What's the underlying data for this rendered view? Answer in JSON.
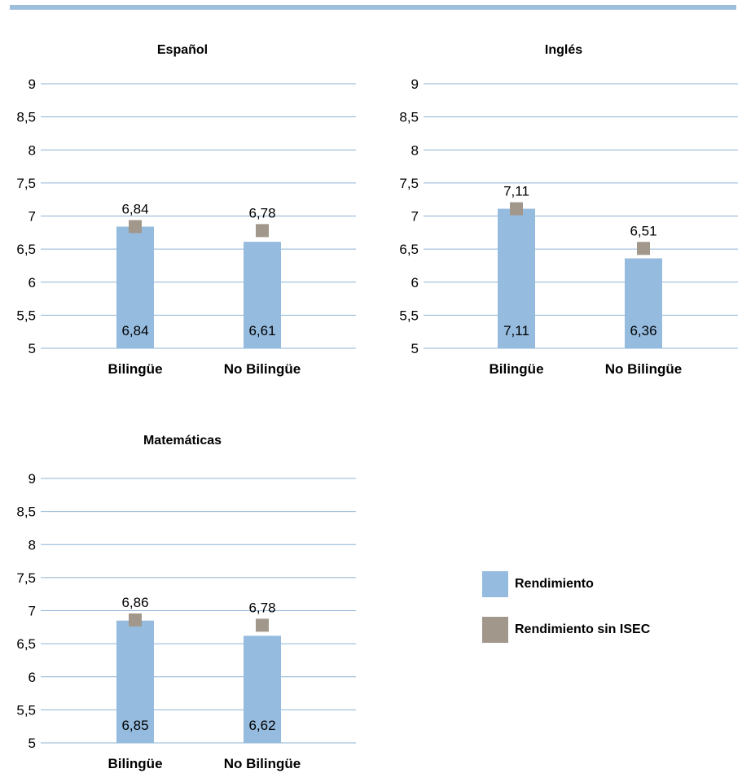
{
  "colors": {
    "top_rule": "#9dbfdc",
    "bar": "#95bbdf",
    "marker": "#a2978b",
    "grid": "#8fb4d6",
    "text": "#000000"
  },
  "chart_data": [
    {
      "type": "bar",
      "title": "Español",
      "categories": [
        "Bilingüe",
        "No Bilingüe"
      ],
      "ylim": [
        5,
        9
      ],
      "yticks": [
        "5",
        "5,5",
        "6",
        "6,5",
        "7",
        "7,5",
        "8",
        "8,5",
        "9"
      ],
      "grid": true,
      "series": [
        {
          "name": "Rendimiento",
          "kind": "bar",
          "values": [
            6.84,
            6.61
          ],
          "labels": [
            "6,84",
            "6,61"
          ]
        },
        {
          "name": "Rendimiento sin ISEC",
          "kind": "marker",
          "values": [
            6.84,
            6.78
          ],
          "labels": [
            "6,84",
            "6,78"
          ]
        }
      ]
    },
    {
      "type": "bar",
      "title": "Inglés",
      "categories": [
        "Bilingüe",
        "No Bilingüe"
      ],
      "ylim": [
        5,
        9
      ],
      "yticks": [
        "5",
        "5,5",
        "6",
        "6,5",
        "7",
        "7,5",
        "8",
        "8,5",
        "9"
      ],
      "grid": true,
      "series": [
        {
          "name": "Rendimiento",
          "kind": "bar",
          "values": [
            7.11,
            6.36
          ],
          "labels": [
            "7,11",
            "6,36"
          ]
        },
        {
          "name": "Rendimiento sin ISEC",
          "kind": "marker",
          "values": [
            7.11,
            6.51
          ],
          "labels": [
            "7,11",
            "6,51"
          ]
        }
      ]
    },
    {
      "type": "bar",
      "title": "Matemáticas",
      "categories": [
        "Bilingüe",
        "No Bilingüe"
      ],
      "ylim": [
        5,
        9
      ],
      "yticks": [
        "5",
        "5,5",
        "6",
        "6,5",
        "7",
        "7,5",
        "8",
        "8,5",
        "9"
      ],
      "grid": true,
      "series": [
        {
          "name": "Rendimiento",
          "kind": "bar",
          "values": [
            6.85,
            6.62
          ],
          "labels": [
            "6,85",
            "6,62"
          ]
        },
        {
          "name": "Rendimiento sin ISEC",
          "kind": "marker",
          "values": [
            6.86,
            6.78
          ],
          "labels": [
            "6,86",
            "6,78"
          ]
        }
      ]
    }
  ],
  "legend": {
    "items": [
      {
        "label": "Rendimiento",
        "color_key": "bar"
      },
      {
        "label": "Rendimiento sin ISEC",
        "color_key": "marker"
      }
    ]
  }
}
